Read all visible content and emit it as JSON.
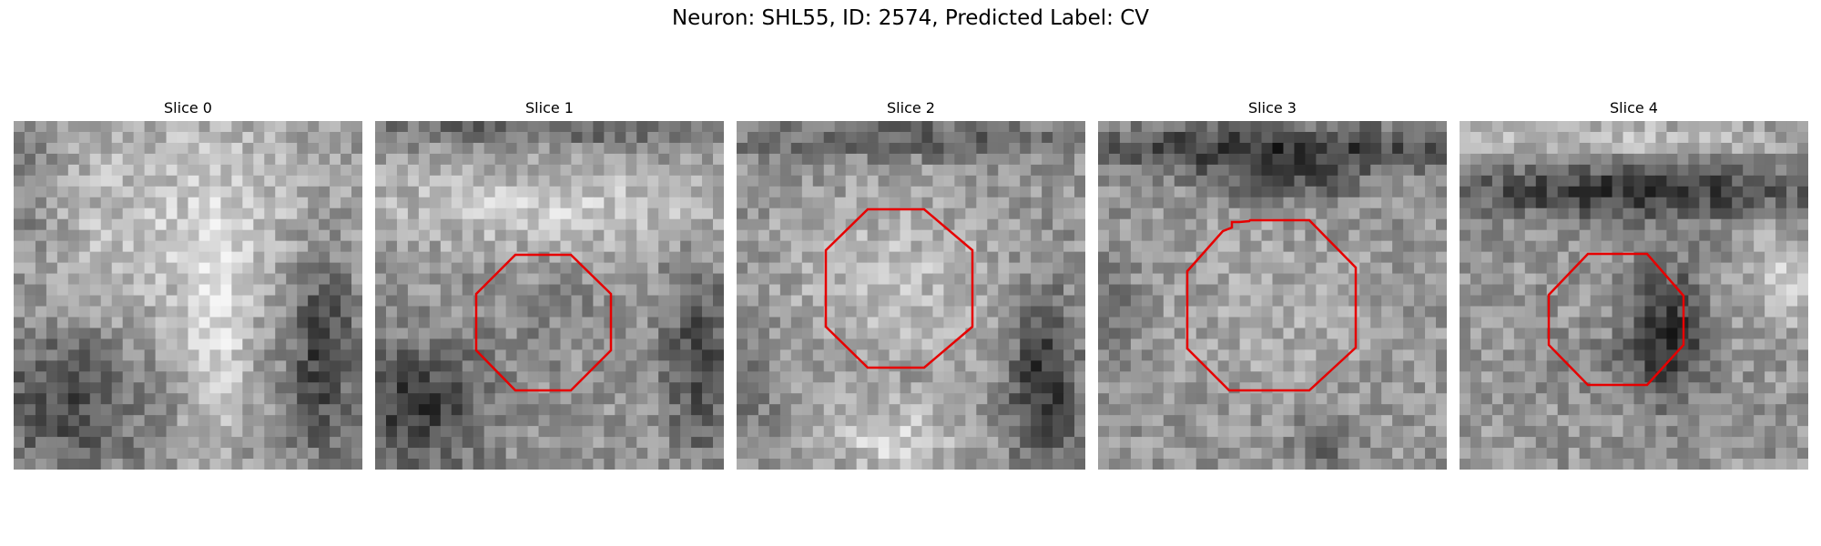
{
  "figure": {
    "title": "Neuron: SHL55, ID: 2574, Predicted Label: CV"
  },
  "overlay_color": "#e60000",
  "panels": [
    {
      "title": "Slice 0",
      "has_outline": false
    },
    {
      "title": "Slice 1",
      "has_outline": true
    },
    {
      "title": "Slice 2",
      "has_outline": true
    },
    {
      "title": "Slice 3",
      "has_outline": true
    },
    {
      "title": "Slice 4",
      "has_outline": true
    }
  ]
}
